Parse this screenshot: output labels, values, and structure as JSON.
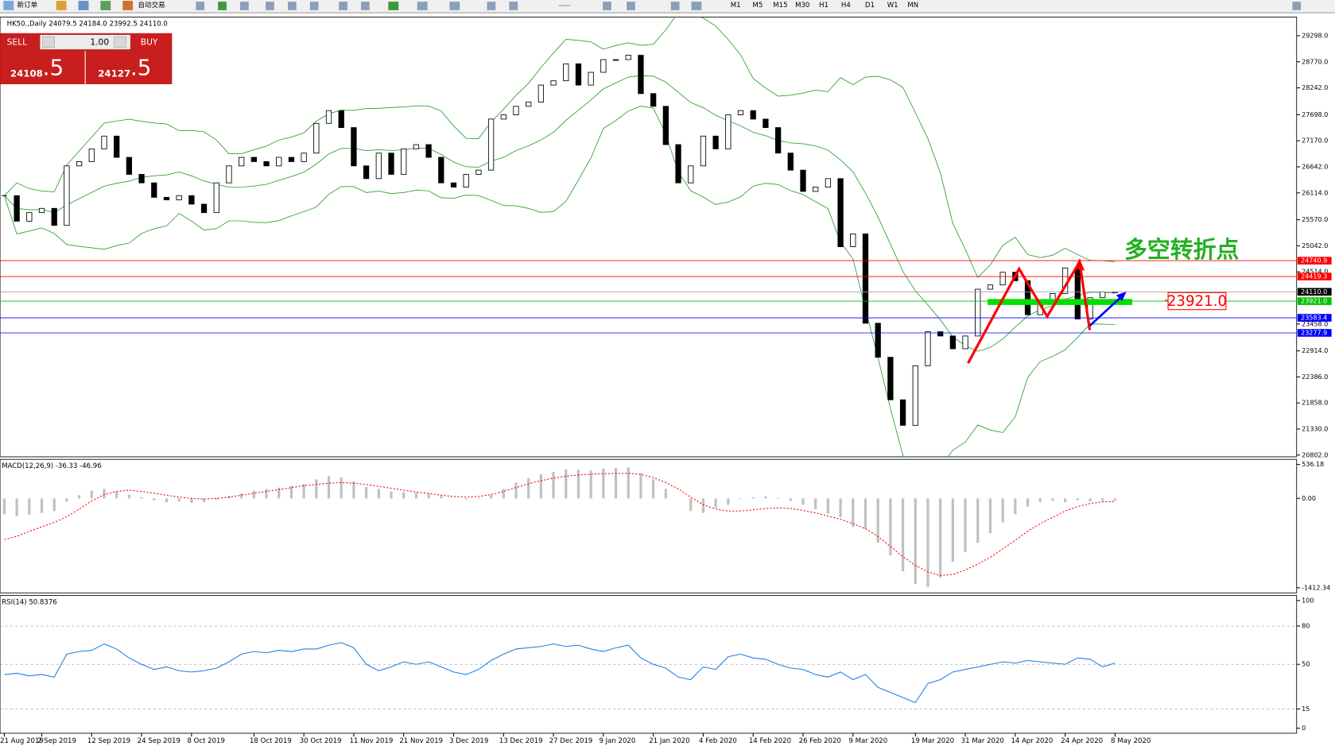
{
  "toolbar": {
    "new_order": "新订单",
    "auto_trading": "自动交易",
    "timeframes": [
      "M1",
      "M5",
      "M15",
      "M30",
      "H1",
      "H4",
      "D1",
      "W1",
      "MN"
    ]
  },
  "trade_panel": {
    "sell": "SELL",
    "buy": "BUY",
    "volume": "1.00",
    "sell_price": "24108",
    "sell_pips": ".5",
    "buy_price": "24127",
    "buy_pips": ".5"
  },
  "chart_data": [
    {
      "type": "candlestick",
      "title": "HK50.,Daily  24079.5 24184.0 23992.5 24110.0",
      "categories": [
        "21 Aug 2019",
        null,
        null,
        "2 Sep 2019",
        null,
        null,
        null,
        "12 Sep 2019",
        null,
        null,
        null,
        "24 Sep 2019",
        null,
        null,
        null,
        "8 Oct 2019",
        null,
        null,
        null,
        null,
        "18 Oct 2019",
        null,
        null,
        null,
        "30 Oct 2019",
        null,
        null,
        null,
        "11 Nov 2019",
        null,
        null,
        null,
        "21 Nov 2019",
        null,
        null,
        null,
        "3 Dec 2019",
        null,
        null,
        null,
        "13 Dec 2019",
        null,
        null,
        null,
        "27 Dec 2019",
        null,
        null,
        null,
        "9 Jan 2020",
        null,
        null,
        null,
        "21 Jan 2020",
        null,
        null,
        null,
        "4 Feb 2020",
        null,
        null,
        null,
        "14 Feb 2020",
        null,
        null,
        null,
        "26 Feb 2020",
        null,
        null,
        null,
        "9 Mar 2020",
        null,
        null,
        null,
        null,
        "19 Mar 2020",
        null,
        null,
        null,
        "31 Mar 2020",
        null,
        null,
        null,
        "14 Apr 2020",
        null,
        null,
        null,
        "24 Apr 2020",
        null,
        null,
        null,
        "8 May 2020"
      ],
      "values": [
        26058,
        25541,
        25714,
        25800,
        25455,
        26661,
        26748,
        27006,
        27265,
        26834,
        26489,
        26317,
        26024,
        25972,
        26058,
        25886,
        25714,
        26317,
        26661,
        26834,
        26748,
        26661,
        26834,
        26748,
        26920,
        27523,
        27781,
        27437,
        26661,
        26403,
        26920,
        26489,
        27006,
        27092,
        26834,
        26317,
        26231,
        26489,
        26575,
        27609,
        27695,
        27868,
        27954,
        28298,
        28385,
        28729,
        28298,
        28557,
        28815,
        28815,
        28902,
        28126,
        27868,
        27092,
        26317,
        26661,
        27265,
        27006,
        27695,
        27781,
        27609,
        27437,
        26920,
        26575,
        26144,
        26231,
        26403,
        25024,
        25283,
        23473,
        22784,
        21922,
        21405,
        22612,
        23301,
        23215,
        22956,
        23215,
        24163,
        24249,
        24507,
        24335,
        23646,
        23904,
        24076,
        24593,
        23559,
        23990,
        24110,
        24110
      ],
      "ylim": [
        20802,
        29298
      ],
      "yticks": [
        {
          "value": 29298,
          "label": "29298.0"
        },
        {
          "value": 28770,
          "label": "28770.0"
        },
        {
          "value": 28242,
          "label": "28242.0"
        },
        {
          "value": 27698,
          "label": "27698.0"
        },
        {
          "value": 27170,
          "label": "27170.0"
        },
        {
          "value": 26642,
          "label": "26642.0"
        },
        {
          "value": 26114,
          "label": "26114.0"
        },
        {
          "value": 25570,
          "label": "25570.0"
        },
        {
          "value": 25042,
          "label": "25042.0"
        },
        {
          "value": 24514,
          "label": "24514.0"
        },
        {
          "value": 23458,
          "label": "23458.0"
        },
        {
          "value": 22914,
          "label": "22914.0"
        },
        {
          "value": 22386,
          "label": "22386.0"
        },
        {
          "value": 21858,
          "label": "21858.0"
        },
        {
          "value": 21330,
          "label": "21330.0"
        },
        {
          "value": 20802,
          "label": "20802.0"
        }
      ],
      "levels": [
        {
          "value": 24740.9,
          "color": "#ff0000"
        },
        {
          "value": 24419.3,
          "color": "#ff0000"
        },
        {
          "value": 24110,
          "label": "24110.0",
          "color": "#000000"
        },
        {
          "value": 23921,
          "label": "23921.0",
          "color": "#00c000"
        },
        {
          "value": 23583.4,
          "color": "#0000ff"
        },
        {
          "value": 23277.9,
          "color": "#0000ff"
        }
      ],
      "annotations": [
        "多空转折点",
        "23921.0"
      ]
    },
    {
      "type": "macd",
      "title": "MACD(12,26,9) -36.33 -46.96",
      "values": [
        -250,
        -280,
        -260,
        -230,
        -200,
        -50,
        50,
        120,
        150,
        110,
        60,
        20,
        -30,
        -60,
        -50,
        -70,
        -60,
        -20,
        40,
        80,
        120,
        150,
        170,
        200,
        230,
        300,
        350,
        330,
        270,
        180,
        150,
        110,
        100,
        90,
        70,
        40,
        0,
        -20,
        -10,
        50,
        150,
        250,
        320,
        380,
        420,
        460,
        450,
        440,
        470,
        480,
        490,
        400,
        300,
        150,
        0,
        -200,
        -230,
        -150,
        -100,
        -10,
        20,
        30,
        10,
        -40,
        -100,
        -170,
        -240,
        -300,
        -450,
        -480,
        -700,
        -900,
        -1150,
        -1350,
        -1400,
        -1250,
        -1000,
        -850,
        -700,
        -550,
        -380,
        -250,
        -130,
        -60,
        -40,
        -60,
        -30,
        -50,
        -40,
        -36
      ],
      "signal": [
        -650,
        -600,
        -520,
        -450,
        -380,
        -290,
        -170,
        -40,
        60,
        110,
        130,
        110,
        80,
        50,
        20,
        0,
        -10,
        0,
        20,
        50,
        80,
        110,
        140,
        170,
        200,
        220,
        240,
        250,
        240,
        220,
        190,
        160,
        130,
        100,
        80,
        50,
        30,
        20,
        30,
        60,
        110,
        170,
        230,
        280,
        320,
        350,
        370,
        380,
        390,
        395,
        395,
        380,
        330,
        250,
        150,
        20,
        -100,
        -170,
        -200,
        -200,
        -180,
        -160,
        -150,
        -160,
        -190,
        -230,
        -280,
        -330,
        -400,
        -480,
        -600,
        -760,
        -920,
        -1060,
        -1160,
        -1220,
        -1200,
        -1130,
        -1040,
        -930,
        -800,
        -660,
        -520,
        -400,
        -300,
        -200,
        -130,
        -80,
        -55,
        -47
      ],
      "ylim": [
        -1412.34,
        536.18
      ],
      "yticks": [
        536.18,
        {
          "value": 0,
          "label": "0.00"
        },
        -1412.34
      ]
    },
    {
      "type": "line",
      "title": "RSI(14) 50.8376",
      "color": "#1e82e6",
      "values": [
        42,
        43,
        41,
        42,
        40,
        58,
        60,
        61,
        66,
        62,
        55,
        50,
        46,
        48,
        45,
        44,
        45,
        47,
        52,
        58,
        60,
        59,
        61,
        60,
        62,
        62,
        65,
        67,
        63,
        50,
        45,
        48,
        52,
        50,
        52,
        48,
        44,
        42,
        46,
        53,
        58,
        62,
        63,
        64,
        66,
        64,
        65,
        62,
        60,
        63,
        65,
        55,
        50,
        47,
        40,
        38,
        48,
        46,
        56,
        58,
        55,
        54,
        50,
        47,
        46,
        42,
        40,
        44,
        38,
        42,
        32,
        28,
        24,
        20,
        35,
        38,
        44,
        46,
        48,
        50,
        52,
        51,
        53,
        52,
        51,
        50,
        55,
        54,
        48,
        51
      ],
      "ylim": [
        0,
        100
      ],
      "yticks": [
        0,
        15,
        50,
        80,
        100
      ]
    }
  ]
}
